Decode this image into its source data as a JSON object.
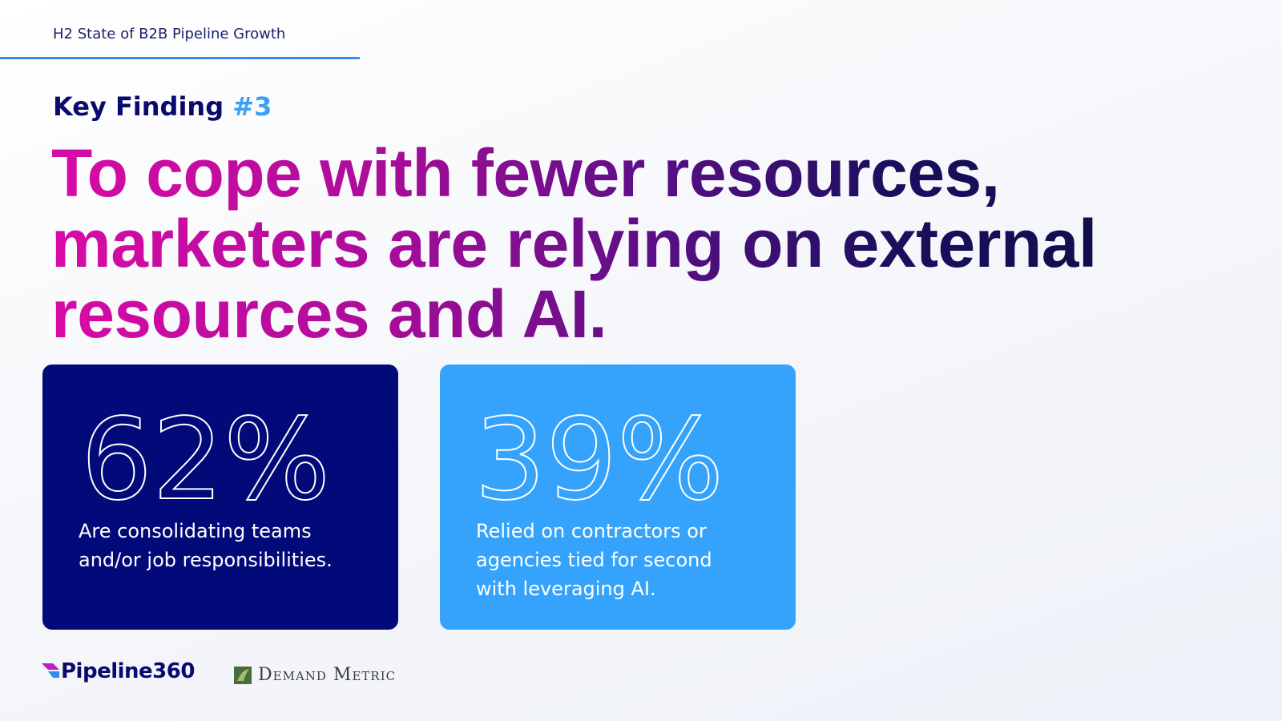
{
  "header": {
    "title": "H2 State of B2B Pipeline Growth"
  },
  "kicker": {
    "label": "Key Finding",
    "number": "#3"
  },
  "headline": {
    "lines": [
      "To cope with fewer resources,",
      "marketers are relying on external",
      "resources and AI."
    ]
  },
  "stats": [
    {
      "value": "62%",
      "description": [
        "Are consolidating teams",
        "and/or job responsibilities."
      ]
    },
    {
      "value": "39%",
      "description": [
        "Relied on contractors or",
        "agencies tied for second",
        "with leveraging AI."
      ]
    }
  ],
  "footer": {
    "logos": [
      "Pipeline360",
      "Demand Metric"
    ]
  }
}
